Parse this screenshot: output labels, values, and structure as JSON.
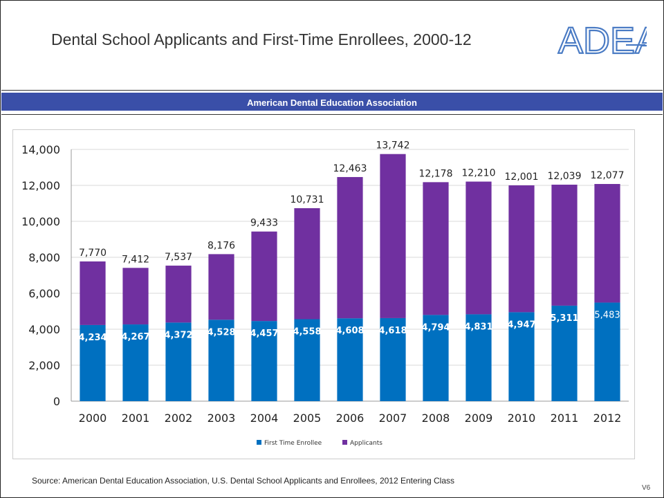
{
  "slide": {
    "title": "Dental School Applicants and First-Time Enrollees, 2000-12",
    "org_logo_text": "ADEA",
    "banner": "American Dental Education Association",
    "source": "Source: American Dental Education Association, U.S. Dental School Applicants and Enrollees, 2012 Entering Class",
    "slide_id": "V6"
  },
  "colors": {
    "enrollee": "#0070c0",
    "applicants": "#7030a0",
    "banner": "#3a4fa8",
    "logo": "#4a7bc4"
  },
  "chart_data": {
    "type": "bar",
    "stacked": true,
    "categories": [
      "2000",
      "2001",
      "2002",
      "2003",
      "2004",
      "2005",
      "2006",
      "2007",
      "2008",
      "2009",
      "2010",
      "2011",
      "2012"
    ],
    "series": [
      {
        "name": "First Time Enrollee",
        "values": [
          4234,
          4267,
          4372,
          4528,
          4457,
          4558,
          4608,
          4618,
          4794,
          4831,
          4947,
          5311,
          5483
        ]
      },
      {
        "name": "Applicants",
        "values": [
          3536,
          3145,
          3165,
          3648,
          4976,
          6173,
          7855,
          9124,
          7384,
          7379,
          7054,
          6728,
          6594
        ]
      }
    ],
    "totals": [
      7770,
      7412,
      7537,
      8176,
      9433,
      10731,
      12463,
      13742,
      12178,
      12210,
      12001,
      12039,
      12077
    ],
    "ylim": [
      0,
      14000
    ],
    "yticks": [
      0,
      2000,
      4000,
      6000,
      8000,
      10000,
      12000,
      14000
    ],
    "grid": true,
    "legend_position": "bottom"
  }
}
